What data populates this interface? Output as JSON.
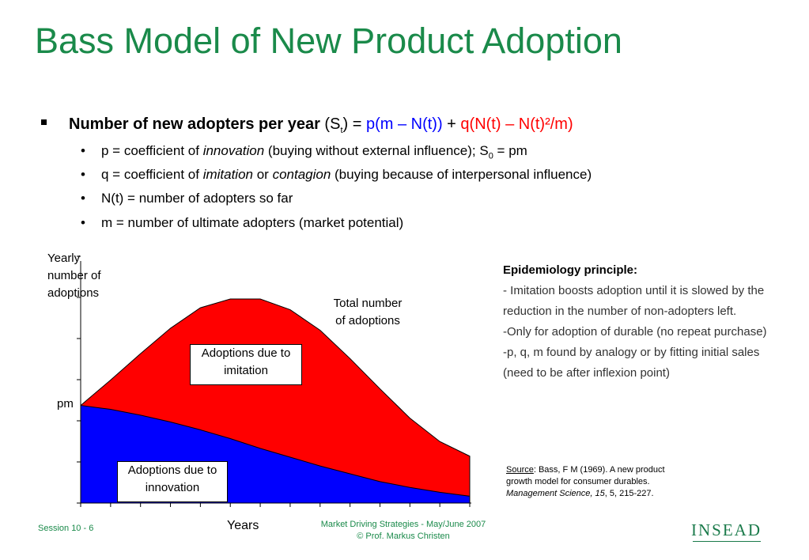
{
  "title": "Bass Model of New Product Adoption",
  "bullet": {
    "bold": "Number of new adopters per year",
    "s": " (S",
    "s_sub": "t",
    "eq": ") = ",
    "p_term": "p(m – N(t))",
    "plus": " + ",
    "q_term": "q(N(t) – N(t)²/m)"
  },
  "subbullets": {
    "p": {
      "a": "p = coefficient of ",
      "em": "innovation",
      "b": " (buying without external influence); S",
      "sub": "0",
      "c": " = pm"
    },
    "q": {
      "a": "q  = coefficient of ",
      "em1": "imitation",
      "b": " or ",
      "em2": "contagion",
      "c": " (buying because of interpersonal influence)"
    },
    "n": "N(t) = number of adopters so far",
    "m": "m = number of ultimate adopters (market potential)"
  },
  "chart_labels": {
    "yaxis": [
      "Yearly",
      "number of",
      "adoptions"
    ],
    "pm": "pm",
    "total": [
      "Total number",
      "of adoptions"
    ],
    "imitation": [
      "Adoptions due to",
      "imitation"
    ],
    "innovation": [
      "Adoptions due to",
      "innovation"
    ],
    "xaxis": "Years"
  },
  "epidemiology": {
    "heading": "Epidemiology principle:",
    "lines": [
      "- Imitation boosts adoption until it is slowed by the reduction in the number of non-adopters left.",
      "-Only for adoption of durable (no repeat purchase)",
      "-p, q, m found by analogy or by fitting initial sales (need to be after inflexion point)"
    ]
  },
  "source": {
    "label": "Source",
    "line1": ": Bass, F M (1969). A new product",
    "line2": "growth model for consumer durables.",
    "journal": "Management Science",
    "vol": ", 15",
    "rest": ", 5, 215-227."
  },
  "footer": {
    "session": "Session 10 - 6",
    "course": "Market Driving Strategies - May/June 2007",
    "copyright": "© Prof. Markus Christen",
    "logo": "INSEAD"
  },
  "colors": {
    "title": "#1a8a4a",
    "imitation": "#ff0000",
    "innovation": "#0000ff"
  },
  "chart_data": {
    "type": "area",
    "x": [
      0,
      1,
      2,
      3,
      4,
      5,
      6,
      7,
      8,
      9,
      10,
      11,
      12,
      13
    ],
    "series": [
      {
        "name": "Adoptions due to innovation",
        "values": [
          1.0,
          0.96,
          0.9,
          0.83,
          0.75,
          0.66,
          0.56,
          0.47,
          0.38,
          0.3,
          0.22,
          0.16,
          0.11,
          0.07
        ]
      },
      {
        "name": "Total number of adoptions",
        "values": [
          1.0,
          1.26,
          1.53,
          1.79,
          2.0,
          2.09,
          2.09,
          1.98,
          1.77,
          1.48,
          1.17,
          0.87,
          0.63,
          0.48
        ]
      }
    ]
  }
}
